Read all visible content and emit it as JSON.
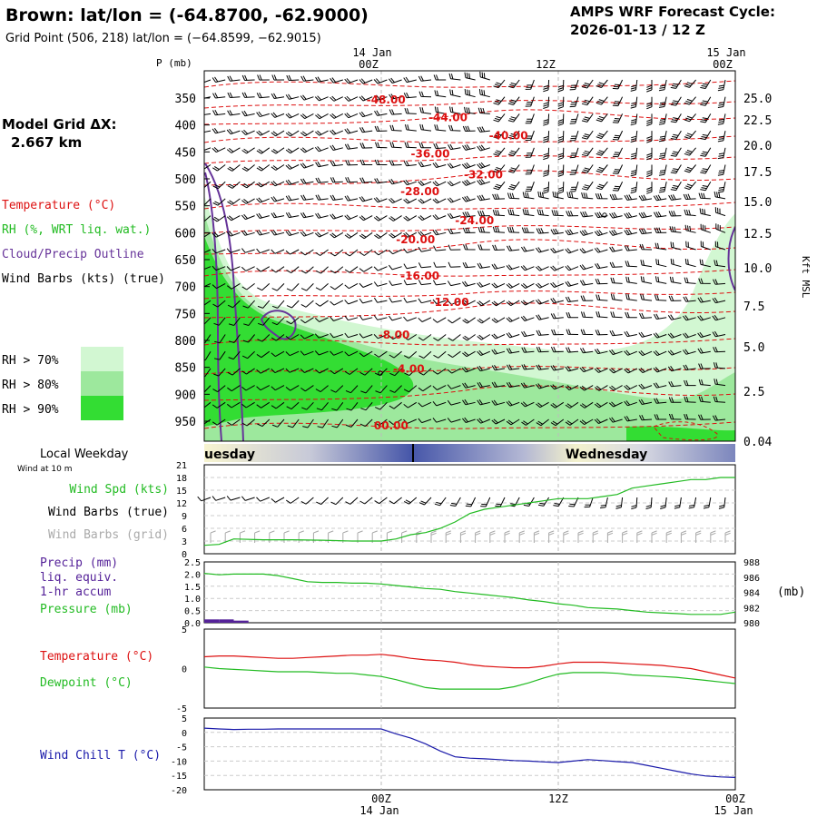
{
  "header": {
    "station_title": "Brown:  lat/lon = (-64.8700, -62.9000)",
    "grid_point": "Grid Point (506, 218) lat/lon = (−64.8599, −62.9015)",
    "forecast_title": "AMPS WRF Forecast Cycle:",
    "forecast_cycle": "2026-01-13 / 12  Z",
    "model_grid_label": "Model Grid ΔX:",
    "model_grid_value": "2.667 km"
  },
  "legend": {
    "temperature": "Temperature (°C)",
    "rh": "RH (%, WRT liq. wat.)",
    "cloud": "Cloud/Precip Outline",
    "wind": "Wind Barbs (kts) (true)",
    "rh_levels": [
      {
        "label": "RH > 70%",
        "color": "#d2f7d2"
      },
      {
        "label": "RH > 80%",
        "color": "#9de89d"
      },
      {
        "label": "RH > 90%",
        "color": "#33dd33"
      }
    ]
  },
  "colors": {
    "temperature": "#dd1111",
    "rh_label": "#22bb22",
    "cloud": "#663399",
    "dewpoint": "#22bb22",
    "windchill": "#1a1aaa",
    "precip": "#552299",
    "grid_barb": "#aaaaaa"
  },
  "chart_data": [
    {
      "type": "heatmap",
      "name": "upper-air-time-height",
      "x_top_labels": [
        {
          "day": "14 Jan",
          "hour": "00Z",
          "x": 12
        },
        {
          "day": "",
          "hour": "12Z",
          "x": 24
        },
        {
          "day": "15 Jan",
          "hour": "00Z",
          "x": 36
        }
      ],
      "xlim": [
        0,
        36
      ],
      "ylabel_left": "P (mb)",
      "ylabel_right": "Kft MSL",
      "pressure_ticks": [
        350,
        400,
        450,
        500,
        550,
        600,
        650,
        700,
        750,
        800,
        850,
        900,
        950
      ],
      "height_ticks": [
        "25.0",
        "22.5",
        "20.0",
        "17.5",
        "15.0",
        "12.5",
        "10.0",
        "7.5",
        "5.0",
        "2.5",
        "0.04"
      ],
      "isotherm_labels": [
        {
          "text": "-48.00",
          "x": 11.0,
          "p": 360
        },
        {
          "text": "-44.00",
          "x": 15.2,
          "p": 393
        },
        {
          "text": "-40.00",
          "x": 19.3,
          "p": 427
        },
        {
          "text": "-36.00",
          "x": 14.0,
          "p": 460
        },
        {
          "text": "-32.00",
          "x": 17.6,
          "p": 499
        },
        {
          "text": "-28.00",
          "x": 13.3,
          "p": 530
        },
        {
          "text": "-24.00",
          "x": 17.0,
          "p": 584
        },
        {
          "text": "-20.00",
          "x": 13.0,
          "p": 620
        },
        {
          "text": "-16.00",
          "x": 13.3,
          "p": 687
        },
        {
          "text": "-12.00",
          "x": 15.3,
          "p": 736
        },
        {
          "text": "-8.00",
          "x": 11.8,
          "p": 797
        },
        {
          "text": "-4.00",
          "x": 12.8,
          "p": 860
        },
        {
          "text": "00.00",
          "x": 11.5,
          "p": 965
        }
      ]
    },
    {
      "type": "line",
      "name": "wind-speed",
      "day_bar": [
        {
          "label": "uesday",
          "x": 0
        },
        {
          "label": "Wednesday",
          "x": 24.3
        }
      ],
      "title": "Local Weekday",
      "subtitle": "Wind at 10 m",
      "series_labels": [
        "Wind Spd (kts)",
        "Wind Barbs (true)",
        "Wind Barbs (grid)"
      ],
      "yticks": [
        0,
        3,
        6,
        9,
        12,
        15,
        18,
        21
      ],
      "ylim": [
        0,
        21
      ],
      "x": [
        0,
        1,
        2,
        4,
        6,
        8,
        10,
        11,
        12,
        13,
        14,
        15,
        16,
        17,
        18,
        19,
        20,
        21,
        22,
        23,
        24,
        25,
        26,
        27,
        28,
        29,
        30,
        31,
        32,
        33,
        34,
        35,
        36
      ],
      "values": [
        2.0,
        2.2,
        3.5,
        3.3,
        3.3,
        3.2,
        3.0,
        3.0,
        3.0,
        3.5,
        4.5,
        5.0,
        6.0,
        7.5,
        9.5,
        10.5,
        11.0,
        11.5,
        12.0,
        12.5,
        13.0,
        13.0,
        13.0,
        13.5,
        14.0,
        15.5,
        16.0,
        16.5,
        17.0,
        17.5,
        17.5,
        18.0,
        18.0
      ]
    },
    {
      "type": "line",
      "name": "precip-pressure",
      "series_labels": [
        "Precip (mm)",
        "liq. equiv.",
        "1-hr accum",
        "Pressure (mb)"
      ],
      "y_left_ticks": [
        "0.0",
        "0.5",
        "1.0",
        "1.5",
        "2.0",
        "2.5"
      ],
      "y_right_ticks": [
        "980",
        "982",
        "984",
        "986",
        "988"
      ],
      "y_right_unit": "(mb)",
      "ylim_left": [
        0,
        2.5
      ],
      "ylim_right": [
        980,
        988
      ],
      "precip_x": [
        0,
        1,
        2
      ],
      "precip_values": [
        0.1,
        0.1,
        0.05
      ],
      "pressure_x": [
        0,
        1,
        2,
        3,
        4,
        5,
        6,
        7,
        8,
        9,
        10,
        11,
        12,
        13,
        14,
        15,
        16,
        17,
        18,
        19,
        20,
        21,
        22,
        23,
        24,
        25,
        26,
        27,
        28,
        29,
        30,
        31,
        32,
        33,
        34,
        35,
        36
      ],
      "pressure_values": [
        986.5,
        986.3,
        986.4,
        986.4,
        986.4,
        986.2,
        985.8,
        985.4,
        985.3,
        985.3,
        985.2,
        985.2,
        985.1,
        984.9,
        984.7,
        984.5,
        984.4,
        984.1,
        983.9,
        983.7,
        983.5,
        983.3,
        983.0,
        982.8,
        982.5,
        982.3,
        982.0,
        981.9,
        981.8,
        981.6,
        981.4,
        981.3,
        981.2,
        981.1,
        981.1,
        981.1,
        981.4
      ]
    },
    {
      "type": "line",
      "name": "temperature-dewpoint",
      "series_labels": [
        "Temperature (°C)",
        "Dewpoint (°C)"
      ],
      "yticks": [
        5,
        0,
        -5
      ],
      "ylim": [
        -5,
        5
      ],
      "temp_x": [
        0,
        1,
        2,
        3,
        4,
        5,
        6,
        7,
        8,
        9,
        10,
        11,
        12,
        13,
        14,
        15,
        16,
        17,
        18,
        19,
        20,
        21,
        22,
        23,
        24,
        25,
        26,
        27,
        28,
        29,
        30,
        31,
        32,
        33,
        34,
        35,
        36
      ],
      "temp_values": [
        1.5,
        1.6,
        1.6,
        1.5,
        1.4,
        1.3,
        1.3,
        1.4,
        1.5,
        1.6,
        1.7,
        1.7,
        1.8,
        1.6,
        1.3,
        1.1,
        1.0,
        0.8,
        0.5,
        0.3,
        0.2,
        0.1,
        0.1,
        0.3,
        0.6,
        0.8,
        0.8,
        0.8,
        0.7,
        0.6,
        0.5,
        0.4,
        0.2,
        0.0,
        -0.4,
        -0.8,
        -1.2
      ],
      "dew_x": [
        0,
        1,
        2,
        3,
        4,
        5,
        6,
        7,
        8,
        9,
        10,
        11,
        12,
        13,
        14,
        15,
        16,
        17,
        18,
        19,
        20,
        21,
        22,
        23,
        24,
        25,
        26,
        27,
        28,
        29,
        30,
        31,
        32,
        33,
        34,
        35,
        36
      ],
      "dew_values": [
        0.2,
        0.0,
        -0.1,
        -0.2,
        -0.3,
        -0.4,
        -0.4,
        -0.4,
        -0.5,
        -0.6,
        -0.6,
        -0.8,
        -1.0,
        -1.4,
        -1.9,
        -2.4,
        -2.6,
        -2.6,
        -2.6,
        -2.6,
        -2.6,
        -2.3,
        -1.8,
        -1.2,
        -0.7,
        -0.5,
        -0.5,
        -0.5,
        -0.6,
        -0.8,
        -0.9,
        -1.0,
        -1.1,
        -1.3,
        -1.5,
        -1.7,
        -1.9
      ]
    },
    {
      "type": "line",
      "name": "wind-chill",
      "series_labels": [
        "Wind Chill T (°C)"
      ],
      "yticks": [
        5,
        0,
        -5,
        -10,
        -15,
        -20
      ],
      "ylim": [
        -20,
        5
      ],
      "x_bottom_labels": [
        {
          "hour": "00Z",
          "day": "14 Jan",
          "x": 12
        },
        {
          "hour": "12Z",
          "day": "",
          "x": 24
        },
        {
          "hour": "00Z",
          "day": "15 Jan",
          "x": 36
        }
      ],
      "x": [
        0,
        1,
        2,
        3,
        4,
        5,
        6,
        7,
        8,
        9,
        10,
        11,
        12,
        13,
        14,
        15,
        16,
        17,
        18,
        19,
        20,
        21,
        22,
        23,
        24,
        25,
        26,
        27,
        28,
        29,
        30,
        31,
        32,
        33,
        34,
        35,
        36
      ],
      "values": [
        1.5,
        1.2,
        1.0,
        1.1,
        1.1,
        1.2,
        1.2,
        1.2,
        1.2,
        1.2,
        1.2,
        1.2,
        1.2,
        -0.5,
        -2.0,
        -4.0,
        -6.5,
        -8.5,
        -9.0,
        -9.2,
        -9.5,
        -9.8,
        -10.0,
        -10.3,
        -10.5,
        -10.0,
        -9.5,
        -9.8,
        -10.2,
        -10.5,
        -11.5,
        -12.5,
        -13.5,
        -14.5,
        -15.2,
        -15.5,
        -15.7
      ]
    }
  ]
}
